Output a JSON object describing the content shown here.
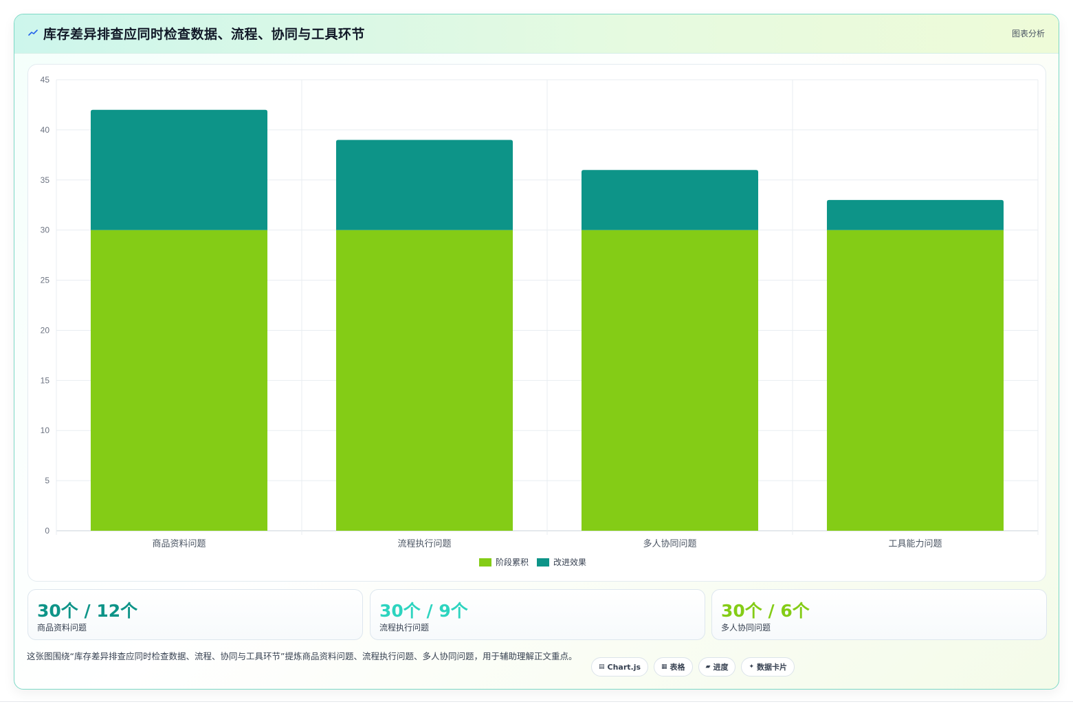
{
  "header": {
    "title": "库存差异排查应同时检查数据、流程、协同与工具环节",
    "tag": "图表分析",
    "icon": "sparkline-icon"
  },
  "chart_data": {
    "type": "bar",
    "stacked": true,
    "categories": [
      "商品资料问题",
      "流程执行问题",
      "多人协同问题",
      "工具能力问题"
    ],
    "series": [
      {
        "name": "阶段累积",
        "values": [
          30,
          30,
          30,
          30
        ],
        "color": "#84cc16"
      },
      {
        "name": "改进效果",
        "values": [
          12,
          9,
          6,
          3
        ],
        "color": "#0d9488"
      }
    ],
    "ylim": [
      0,
      45
    ],
    "yticks": [
      0,
      5,
      10,
      15,
      20,
      25,
      30,
      35,
      40,
      45
    ],
    "grid": true,
    "legend_position": "bottom"
  },
  "stats": [
    {
      "value": "30个 / 12个",
      "label": "商品资料问题",
      "color": "#0d9488"
    },
    {
      "value": "30个 / 9个",
      "label": "流程执行问题",
      "color": "#2dd4bf"
    },
    {
      "value": "30个 / 6个",
      "label": "多人协同问题",
      "color": "#84cc16"
    }
  ],
  "note": "这张图围绕“库存差异排查应同时检查数据、流程、协同与工具环节”提炼商品资料问题、流程执行问题、多人协同问题，用于辅助理解正文重点。",
  "chips": [
    {
      "icon": "▤",
      "icon_name": "chart-icon",
      "label": "Chart.js"
    },
    {
      "icon": "▦",
      "icon_name": "table-icon",
      "label": "表格"
    },
    {
      "icon": "▰",
      "icon_name": "progress-icon",
      "label": "进度"
    },
    {
      "icon": "✦",
      "icon_name": "sparkle-icon",
      "label": "数据卡片"
    }
  ]
}
